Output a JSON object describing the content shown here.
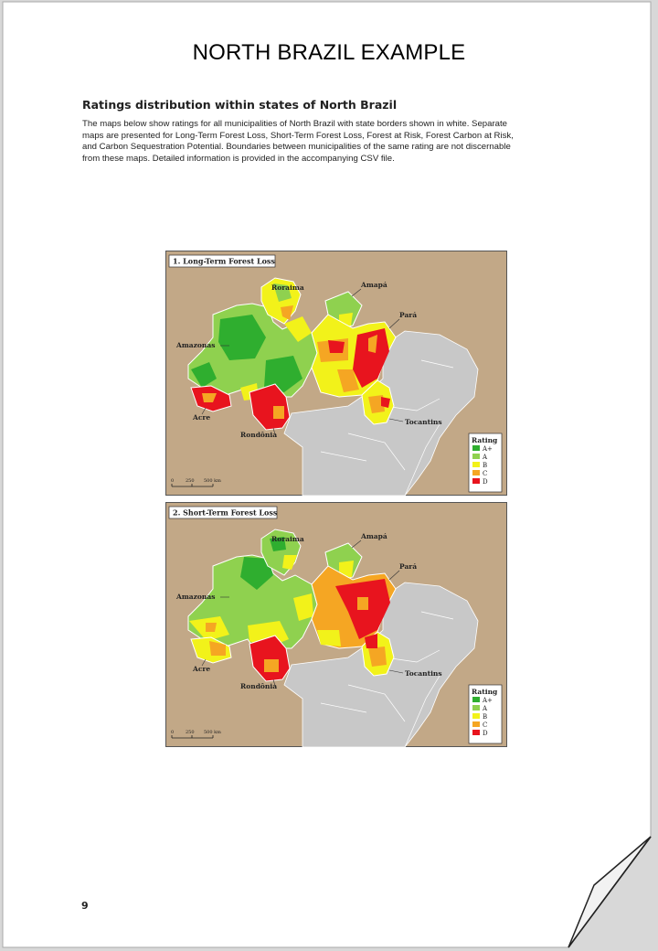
{
  "document": {
    "title": "NORTH BRAZIL EXAMPLE",
    "heading": "Ratings distribution within states of North Brazil",
    "paragraph_lines": [
      "The maps below show ratings for all municipalities of North Brazil with state borders shown in white. Separate",
      "maps are presented for Long-Term Forest Loss, Short-Term Forest Loss, Forest at Risk, Forest Carbon at Risk,",
      "and Carbon Sequestration Potential. Boundaries between municipalities of the same rating are not discernable",
      "from these maps. Detailed information is provided in the accompanying CSV file."
    ],
    "page_number": "9"
  },
  "maps": [
    {
      "title": "1. Long-Term Forest Loss",
      "labels": {
        "roraima": "Roraima",
        "amapa": "Amapá",
        "para": "Pará",
        "amazonas": "Amazonas",
        "acre": "Acre",
        "rondonia": "Rondônia",
        "tocantins": "Tocantins"
      }
    },
    {
      "title": "2. Short-Term Forest Loss",
      "labels": {
        "roraima": "Roraima",
        "amapa": "Amapá",
        "para": "Pará",
        "amazonas": "Amazonas",
        "acre": "Acre",
        "rondonia": "Rondônia",
        "tocantins": "Tocantins"
      }
    }
  ],
  "legend": {
    "title": "Rating",
    "items": [
      {
        "label": "A+",
        "color": "#2fae2f"
      },
      {
        "label": "A",
        "color": "#8fd14f"
      },
      {
        "label": "B",
        "color": "#f2f21a"
      },
      {
        "label": "C",
        "color": "#f5a623"
      },
      {
        "label": "D",
        "color": "#e8141e"
      }
    ]
  },
  "scale": {
    "ticks": [
      "0",
      "250",
      "500 km"
    ]
  },
  "colors": {
    "land_brown": "#c2a887",
    "brazil_gray": "#c8c8c8",
    "border_white": "#ffffff"
  }
}
